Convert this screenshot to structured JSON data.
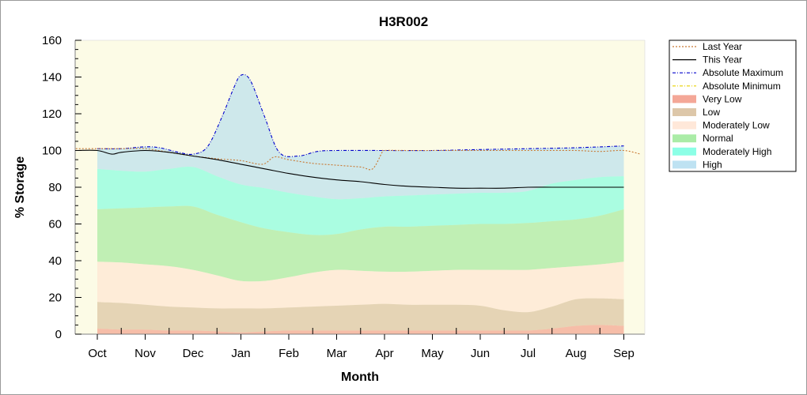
{
  "chart_data": {
    "type": "area",
    "title": "H3R002",
    "xlabel": "Month",
    "ylabel": "% Storage",
    "ylim": [
      0,
      160
    ],
    "yticks": [
      0,
      20,
      40,
      60,
      80,
      100,
      120,
      140,
      160
    ],
    "categories": [
      "Oct",
      "Nov",
      "Dec",
      "Jan",
      "Feb",
      "Mar",
      "Apr",
      "May",
      "Jun",
      "Jul",
      "Aug",
      "Sep"
    ],
    "grid": false,
    "legend_position": "right",
    "legend": [
      {
        "label": "Last Year",
        "kind": "line",
        "color": "#c87832",
        "dash": "2,2"
      },
      {
        "label": "This Year",
        "kind": "line",
        "color": "#000000",
        "dash": ""
      },
      {
        "label": "Absolute Maximum",
        "kind": "line",
        "color": "#0000cc",
        "dash": "4,2,1,2"
      },
      {
        "label": "Absolute Minimum",
        "kind": "line",
        "color": "#e8d000",
        "dash": "4,2,1,2"
      },
      {
        "label": "Very Low",
        "kind": "band",
        "color": "#f08a74"
      },
      {
        "label": "Low",
        "kind": "band",
        "color": "#d2b48c"
      },
      {
        "label": "Moderately Low",
        "kind": "band",
        "color": "#ffe0cc"
      },
      {
        "label": "Normal",
        "kind": "band",
        "color": "#8ee68a"
      },
      {
        "label": "Moderately High",
        "kind": "band",
        "color": "#66ffdd"
      },
      {
        "label": "High",
        "kind": "band",
        "color": "#a8d8ee"
      }
    ],
    "band_x": [
      0,
      0.5,
      1,
      1.5,
      2,
      2.5,
      3,
      3.5,
      4,
      4.5,
      5,
      5.5,
      6,
      6.5,
      7,
      7.5,
      8,
      8.5,
      9,
      9.5,
      10,
      10.5,
      11
    ],
    "band_levels": {
      "very_low_top": [
        3,
        2.5,
        2.5,
        2,
        2,
        1.5,
        1,
        1.5,
        2,
        2,
        2,
        2,
        2,
        2,
        2,
        2,
        2,
        2,
        2,
        3,
        4.5,
        5,
        4.5
      ],
      "low_top": [
        17.5,
        17,
        16,
        15,
        14.5,
        14,
        14,
        14,
        14.5,
        15,
        15.5,
        16,
        16.5,
        16,
        16,
        16,
        15.5,
        13,
        12,
        15,
        19,
        19.5,
        19
      ],
      "moderately_low_top": [
        39.5,
        39,
        38,
        37,
        35,
        32,
        29,
        29,
        31,
        33.5,
        35,
        34.5,
        34,
        34,
        34.5,
        35,
        35,
        35,
        35,
        36,
        37,
        38,
        39.5
      ],
      "normal_top": [
        68,
        68.5,
        69,
        69.5,
        69.5,
        65,
        61,
        57.5,
        55.5,
        54,
        54.5,
        57,
        58.5,
        58.5,
        59,
        59.5,
        60,
        60,
        60.5,
        61.5,
        62.5,
        64.5,
        68
      ],
      "moderately_high_top": [
        90,
        89,
        88.5,
        90,
        91,
        86,
        81.5,
        79.5,
        77,
        75,
        73.5,
        74,
        75,
        75.5,
        76,
        76.5,
        77,
        77,
        78,
        82,
        84,
        85.5,
        86
      ]
    },
    "series": [
      {
        "name": "Absolute Maximum",
        "x": [
          0,
          0.5,
          1,
          1.3,
          1.7,
          2,
          2.3,
          2.6,
          2.85,
          3,
          3.2,
          3.5,
          3.8,
          4.2,
          4.6,
          5,
          6,
          7,
          8,
          9,
          10,
          11
        ],
        "values": [
          101,
          101,
          102,
          101.5,
          99,
          98,
          102,
          118,
          134,
          141,
          138,
          118,
          99,
          97,
          99.5,
          100,
          100,
          100,
          100.5,
          101,
          101.5,
          102.5
        ]
      },
      {
        "name": "Last Year",
        "x": [
          -0.45,
          0,
          0.5,
          1,
          1.5,
          2,
          2.5,
          3,
          3.45,
          3.7,
          4,
          4.5,
          5,
          5.5,
          5.75,
          5.95,
          6,
          6.5,
          7,
          7.5,
          8,
          8.5,
          9,
          9.5,
          10,
          10.5,
          11,
          11.35
        ],
        "values": [
          101,
          101,
          101,
          101,
          99,
          97,
          95.5,
          94.5,
          92.5,
          96.5,
          95,
          93,
          92,
          91,
          90,
          99,
          100,
          100,
          100,
          100,
          100,
          100,
          100,
          100,
          100,
          99.5,
          100,
          98
        ]
      },
      {
        "name": "This Year",
        "x": [
          -0.45,
          0,
          0.3,
          0.5,
          1,
          1.5,
          2,
          2.5,
          3,
          3.5,
          4,
          4.5,
          5,
          5.5,
          6,
          6.5,
          7,
          7.5,
          8,
          8.5,
          9,
          9.5,
          10,
          10.5,
          11
        ],
        "values": [
          100,
          100,
          98,
          99,
          100,
          99,
          97,
          95,
          92.5,
          90,
          87.5,
          85.5,
          84,
          83,
          81.5,
          80.5,
          80,
          79.5,
          79.5,
          79.5,
          80,
          80,
          80,
          80,
          80
        ]
      }
    ]
  }
}
